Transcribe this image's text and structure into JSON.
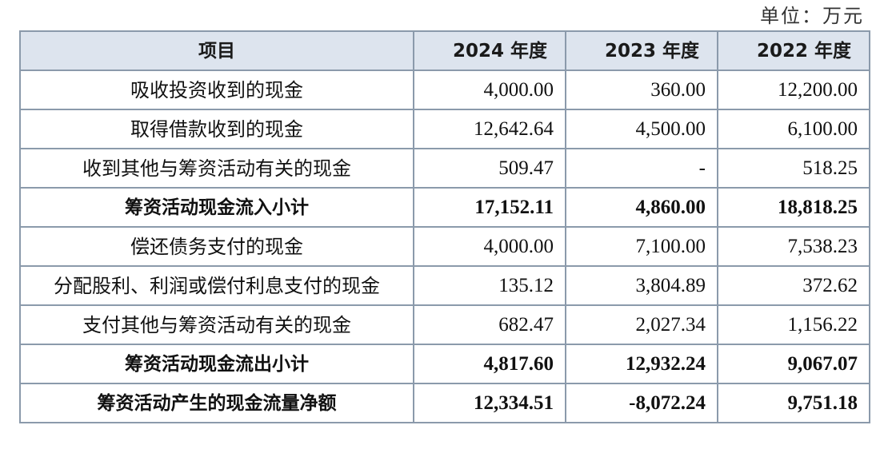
{
  "unit_label": "单位：万元",
  "header": {
    "item": "项目",
    "year_2024": "2024 年度",
    "year_2023": "2023 年度",
    "year_2022": "2022 年度"
  },
  "rows": [
    {
      "item": "吸收投资收到的现金",
      "v2024": "4,000.00",
      "v2023": "360.00",
      "v2022": "12,200.00"
    },
    {
      "item": "取得借款收到的现金",
      "v2024": "12,642.64",
      "v2023": "4,500.00",
      "v2022": "6,100.00"
    },
    {
      "item": "收到其他与筹资活动有关的现金",
      "v2024": "509.47",
      "v2023": "-",
      "v2022": "518.25"
    },
    {
      "item": "筹资活动现金流入小计",
      "v2024": "17,152.11",
      "v2023": "4,860.00",
      "v2022": "18,818.25"
    },
    {
      "item": "偿还债务支付的现金",
      "v2024": "4,000.00",
      "v2023": "7,100.00",
      "v2022": "7,538.23"
    },
    {
      "item": "分配股利、利润或偿付利息支付的现金",
      "v2024": "135.12",
      "v2023": "3,804.89",
      "v2022": "372.62"
    },
    {
      "item": "支付其他与筹资活动有关的现金",
      "v2024": "682.47",
      "v2023": "2,027.34",
      "v2022": "1,156.22"
    },
    {
      "item": "筹资活动现金流出小计",
      "v2024": "4,817.60",
      "v2023": "12,932.24",
      "v2022": "9,067.07"
    },
    {
      "item": "筹资活动产生的现金流量净额",
      "v2024": "12,334.51",
      "v2023": "-8,072.24",
      "v2022": "9,751.18"
    }
  ]
}
